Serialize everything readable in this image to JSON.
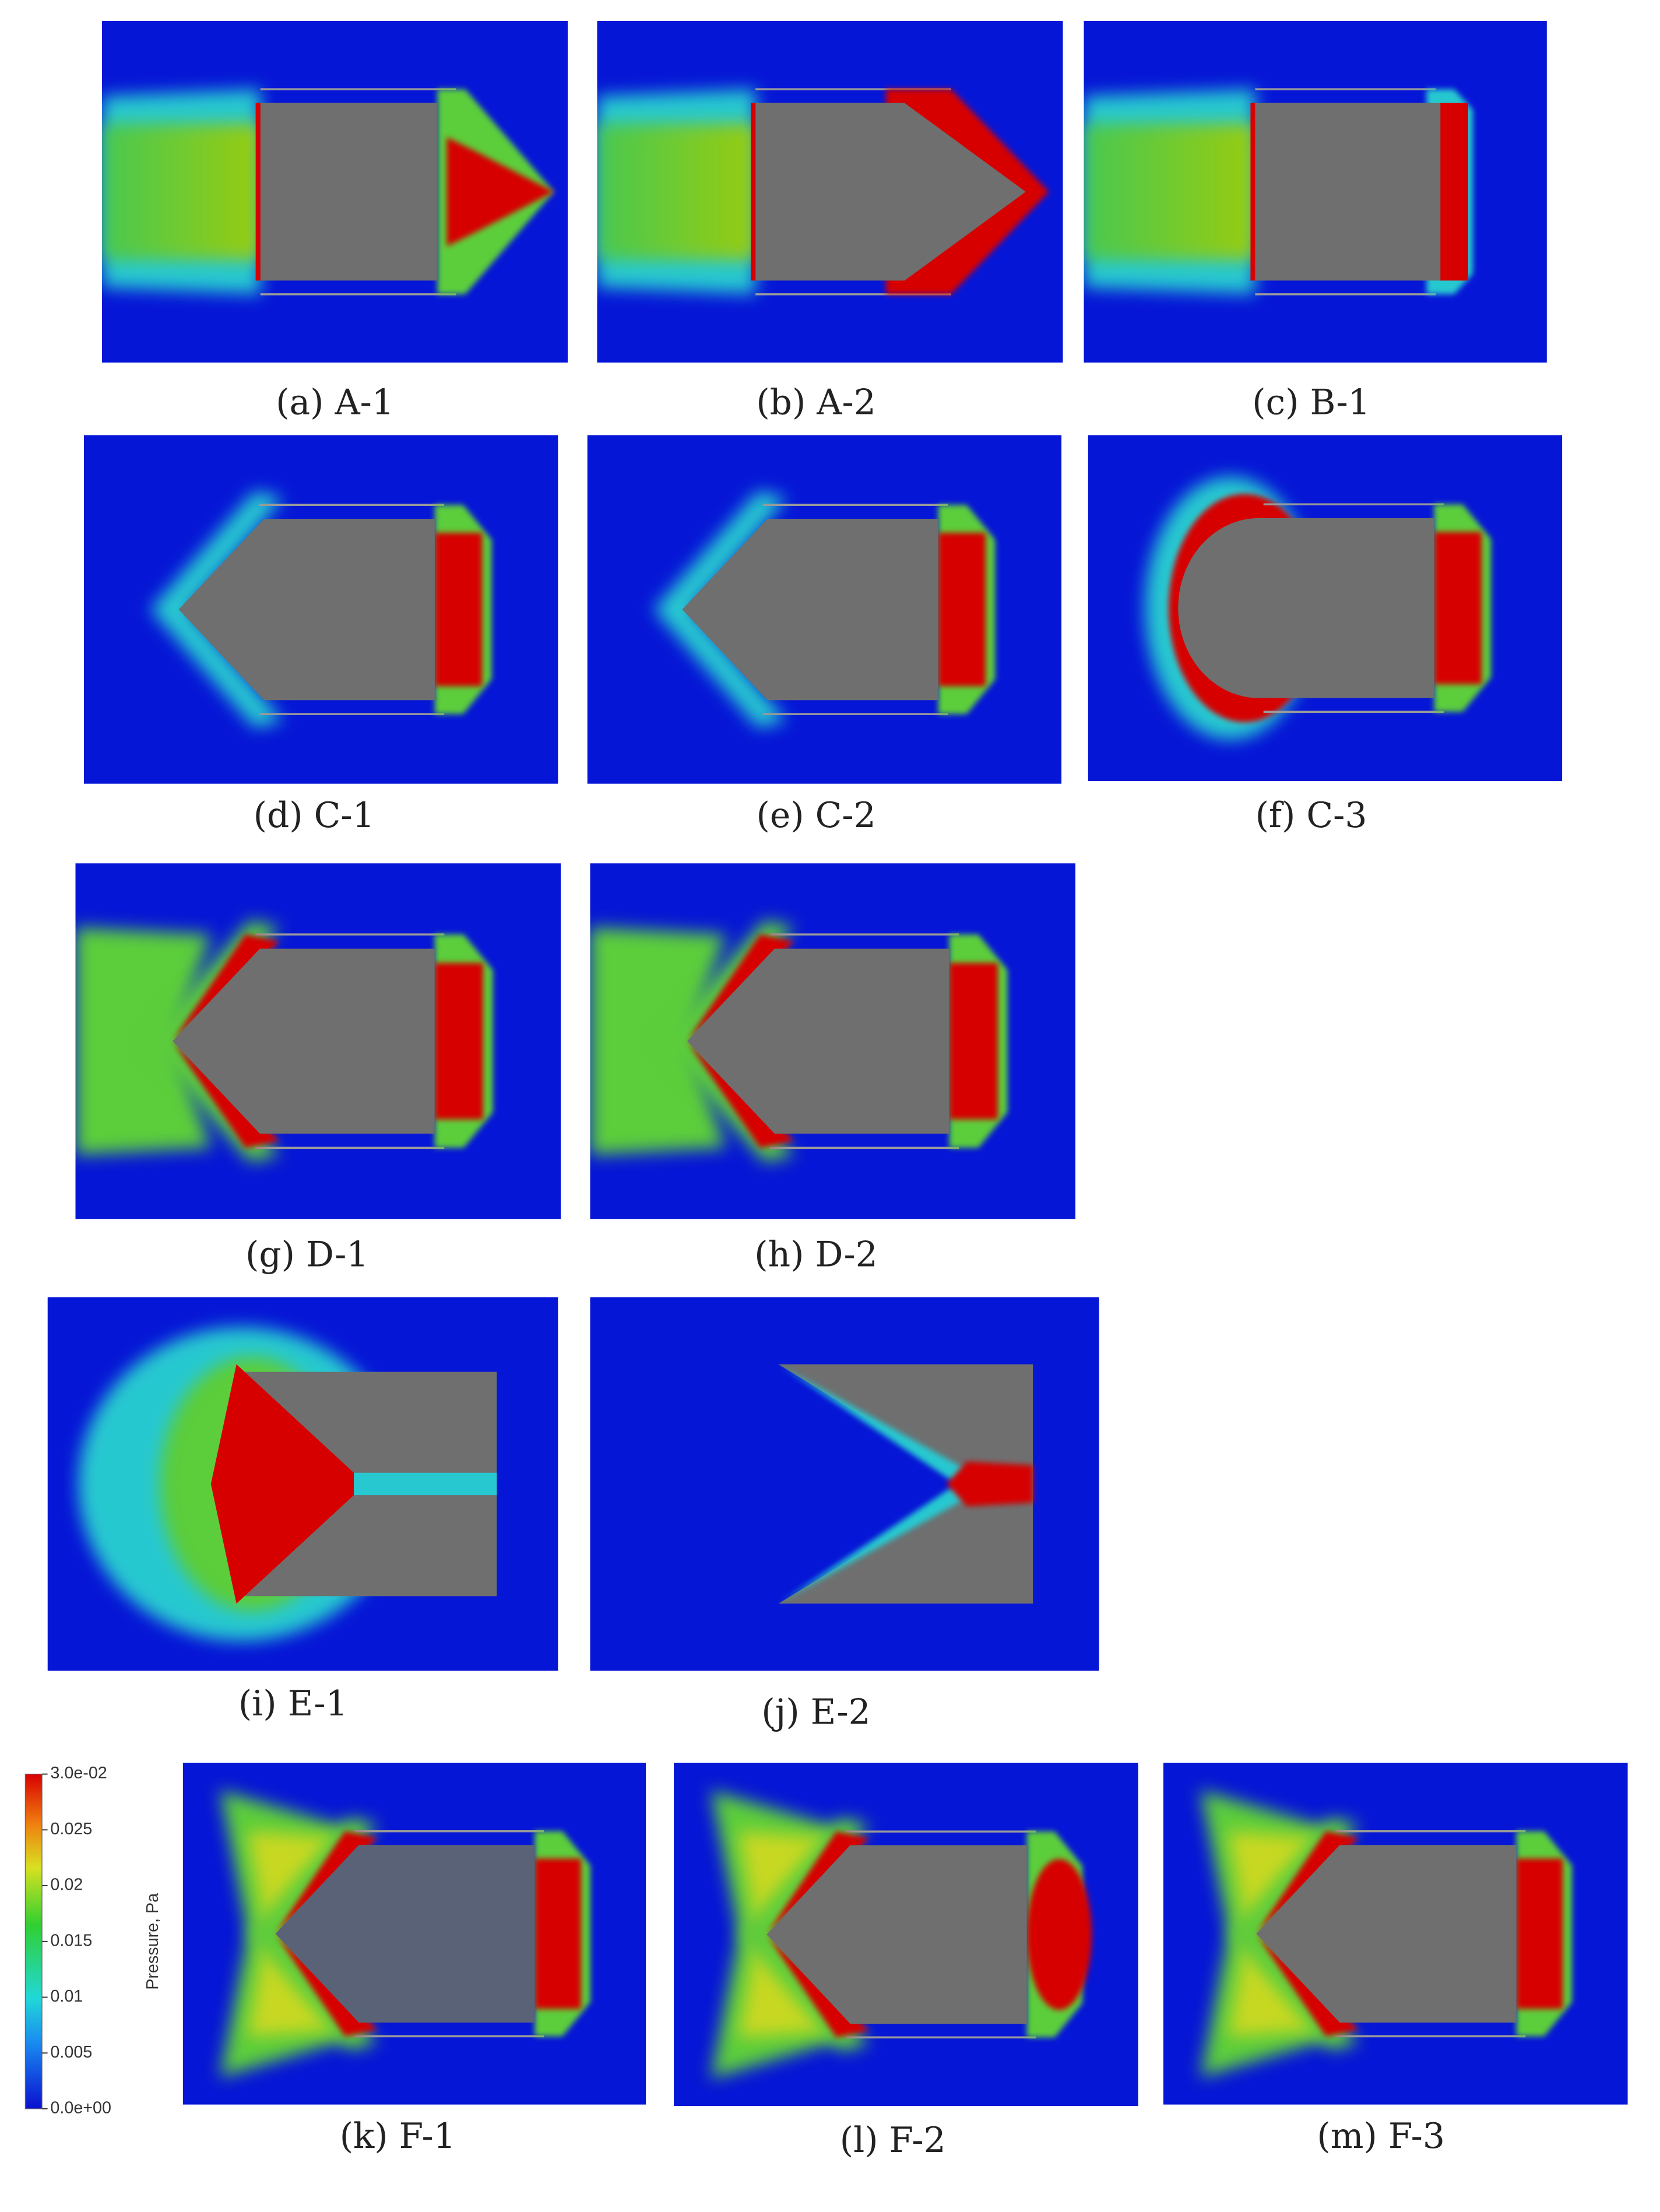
{
  "panels": [
    {
      "caption": "(a) A-1"
    },
    {
      "caption": "(b) A-2"
    },
    {
      "caption": "(c) B-1"
    },
    {
      "caption": "(d) C-1"
    },
    {
      "caption": "(e) C-2"
    },
    {
      "caption": "(f) C-3"
    },
    {
      "caption": "(g) D-1"
    },
    {
      "caption": "(h) D-2"
    },
    {
      "caption": "(i) E-1"
    },
    {
      "caption": "(j) E-2"
    },
    {
      "caption": "(k) F-1"
    },
    {
      "caption": "(l) F-2"
    },
    {
      "caption": "(m) F-3"
    }
  ],
  "colorbar": {
    "title": "Pressure, Pa",
    "lim": [
      0,
      0.03
    ],
    "ticks": [
      {
        "value": 0.03,
        "label": "3.0e-02"
      },
      0.025,
      0.02,
      0.015,
      0.01,
      0.005,
      {
        "value": 0,
        "label": "0.0e+00"
      }
    ]
  }
}
